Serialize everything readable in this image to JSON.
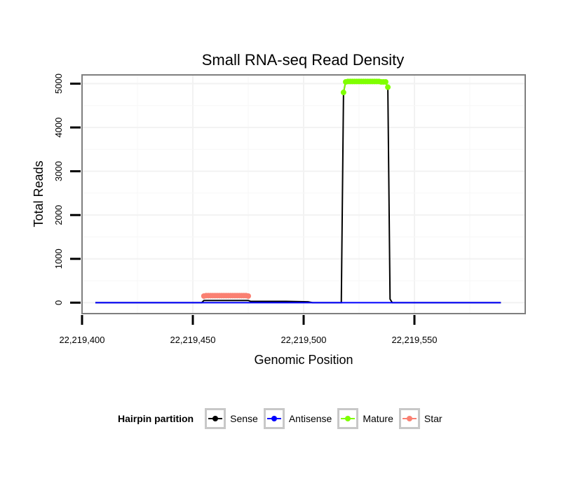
{
  "chart_data": {
    "type": "line",
    "title": "Small RNA-seq Read Density",
    "xlabel": "Genomic Position",
    "ylabel": "Total Reads",
    "xlim": [
      22219400,
      22219600
    ],
    "ylim": [
      -250,
      5200
    ],
    "x_ticks": [
      22219400,
      22219450,
      22219500,
      22219550
    ],
    "x_tick_labels": [
      "22,219,400",
      "22,219,450",
      "22,219,500",
      "22,219,550"
    ],
    "y_ticks": [
      0,
      1000,
      2000,
      3000,
      4000,
      5000
    ],
    "y_tick_labels": [
      "0",
      "1000",
      "2000",
      "3000",
      "4000",
      "5000"
    ],
    "legend": {
      "title": "Hairpin partition",
      "position": "bottom",
      "entries": [
        {
          "name": "Sense",
          "color": "#000000"
        },
        {
          "name": "Antisense",
          "color": "#0000ff"
        },
        {
          "name": "Mature",
          "color": "#7fff00"
        },
        {
          "name": "Star",
          "color": "#fa8072"
        }
      ]
    },
    "series": [
      {
        "name": "Sense",
        "color": "#000000",
        "x": [
          22219406,
          22219454,
          22219455,
          22219475,
          22219476,
          22219492,
          22219502,
          22219504,
          22219517,
          22219518,
          22219519,
          22219537,
          22219538,
          22219539,
          22219540,
          22219589
        ],
        "y": [
          0,
          0,
          50,
          50,
          30,
          30,
          20,
          0,
          0,
          4800,
          5050,
          5050,
          4900,
          80,
          0,
          0
        ]
      },
      {
        "name": "Antisense",
        "color": "#0000ff",
        "x": [
          22219406,
          22219589
        ],
        "y": [
          0,
          0
        ]
      },
      {
        "name": "Star",
        "color": "#fa8072",
        "points": true,
        "x": [
          22219455,
          22219456,
          22219457,
          22219458,
          22219459,
          22219460,
          22219461,
          22219462,
          22219463,
          22219464,
          22219465,
          22219466,
          22219467,
          22219468,
          22219469,
          22219470,
          22219471,
          22219472,
          22219473,
          22219474,
          22219475
        ],
        "y": [
          150,
          160,
          160,
          160,
          160,
          160,
          160,
          160,
          160,
          160,
          160,
          160,
          160,
          160,
          160,
          160,
          160,
          160,
          160,
          160,
          150
        ]
      },
      {
        "name": "Mature",
        "color": "#7fff00",
        "points": true,
        "x": [
          22219518,
          22219519,
          22219520,
          22219521,
          22219522,
          22219523,
          22219524,
          22219525,
          22219526,
          22219527,
          22219528,
          22219529,
          22219530,
          22219531,
          22219532,
          22219533,
          22219534,
          22219535,
          22219536,
          22219537,
          22219538
        ],
        "y": [
          4800,
          5040,
          5050,
          5050,
          5050,
          5050,
          5050,
          5050,
          5050,
          5050,
          5050,
          5050,
          5050,
          5050,
          5050,
          5050,
          5050,
          5040,
          5040,
          5040,
          4920
        ]
      }
    ]
  }
}
